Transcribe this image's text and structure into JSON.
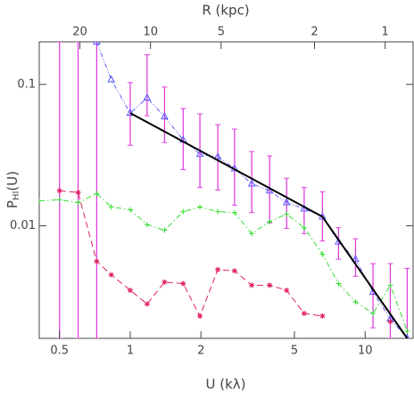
{
  "chart_data": {
    "type": "line",
    "xlabel": "U (kλ)",
    "x2label": "R (kpc)",
    "ylabel": [
      "P",
      "HI",
      "(U)"
    ],
    "xscale": "log",
    "yscale": "log",
    "x2scale": "log",
    "xlim": [
      0.41,
      16
    ],
    "ylim": [
      0.0016,
      0.2
    ],
    "x2lim": [
      29.8,
      0.76
    ],
    "xticks": [
      0.5,
      1,
      2,
      5,
      10
    ],
    "yticks": [
      0.01,
      0.1
    ],
    "x2ticks": [
      20,
      10,
      5,
      2,
      1
    ],
    "errorbars": {
      "color": "#e040e0",
      "x": [
        0.5,
        0.6,
        0.72,
        1.0,
        1.18,
        1.4,
        1.68,
        1.98,
        2.36,
        2.78,
        3.29,
        3.92,
        4.63,
        5.5,
        6.58,
        7.7,
        9.1,
        10.8,
        12.8,
        15.1
      ],
      "lower": [
        0.0016,
        0.0016,
        0.0016,
        0.0371,
        0.06,
        0.0388,
        0.025,
        0.0187,
        0.0179,
        0.014,
        0.0124,
        0.0105,
        0.0096,
        0.0088,
        0.0078,
        0.0058,
        0.0044,
        0.0019,
        0.0016,
        0.0016
      ],
      "upper": [
        0.2,
        0.2,
        0.2,
        0.103,
        0.162,
        0.0957,
        0.0675,
        0.0618,
        0.0519,
        0.0483,
        0.0335,
        0.0312,
        0.0217,
        0.0187,
        0.0174,
        0.0097,
        0.0081,
        0.0054,
        0.0054,
        0.005
      ]
    },
    "series": [
      {
        "color": "#5a5aff",
        "linestyle": "dashdotdot",
        "marker": "triangle",
        "x": [
          0.72,
          0.83,
          1.0,
          1.18,
          1.4,
          1.68,
          1.98,
          2.36,
          2.78,
          3.29,
          3.92,
          4.63,
          5.5,
          6.58,
          7.7,
          9.1,
          10.8,
          12.8,
          15.1
        ],
        "values": [
          0.2,
          0.108,
          0.0627,
          0.0804,
          0.0592,
          0.0405,
          0.0321,
          0.0307,
          0.0254,
          0.0198,
          0.0177,
          0.0146,
          0.0132,
          0.0116,
          0.0077,
          0.0058,
          0.0034,
          0.0022,
          0.0016
        ]
      },
      {
        "color": "#33dd33",
        "linestyle": "dashdot",
        "marker": "plus",
        "x": [
          0.41,
          0.5,
          0.6,
          0.72,
          0.83,
          1.0,
          1.18,
          1.4,
          1.68,
          1.98,
          2.36,
          2.78,
          3.29,
          3.92,
          4.63,
          5.5,
          6.58,
          7.7,
          9.1,
          10.8,
          12.8,
          15.1
        ],
        "values": [
          0.015,
          0.0153,
          0.0146,
          0.0169,
          0.0136,
          0.013,
          0.0102,
          0.0093,
          0.0126,
          0.0136,
          0.0126,
          0.0124,
          0.0088,
          0.0107,
          0.0121,
          0.0097,
          0.0063,
          0.0039,
          0.0029,
          0.0024,
          0.0038,
          0.0018
        ]
      },
      {
        "color": "#e0205f",
        "linestyle": "dashed",
        "marker": "star",
        "x": [
          0.5,
          0.6,
          0.72,
          0.83,
          1.0,
          1.18,
          1.4,
          1.68,
          1.98,
          2.36,
          2.78,
          3.29,
          3.92,
          4.63,
          5.5,
          6.58,
          7.7,
          9.1,
          10.8,
          12.8
        ],
        "values": [
          0.0177,
          0.0172,
          0.0056,
          0.0045,
          0.0035,
          0.0028,
          0.004,
          0.0039,
          0.0023,
          0.0049,
          0.0048,
          0.0038,
          0.0038,
          0.0035,
          0.0024,
          0.0023,
          null,
          null,
          null,
          0.0021
        ]
      },
      {
        "color": "#000000",
        "linestyle": "solid",
        "marker": "none",
        "x": [
          1.0,
          6.58,
          15.1
        ],
        "values": [
          0.0627,
          0.0116,
          0.0016
        ]
      }
    ]
  }
}
